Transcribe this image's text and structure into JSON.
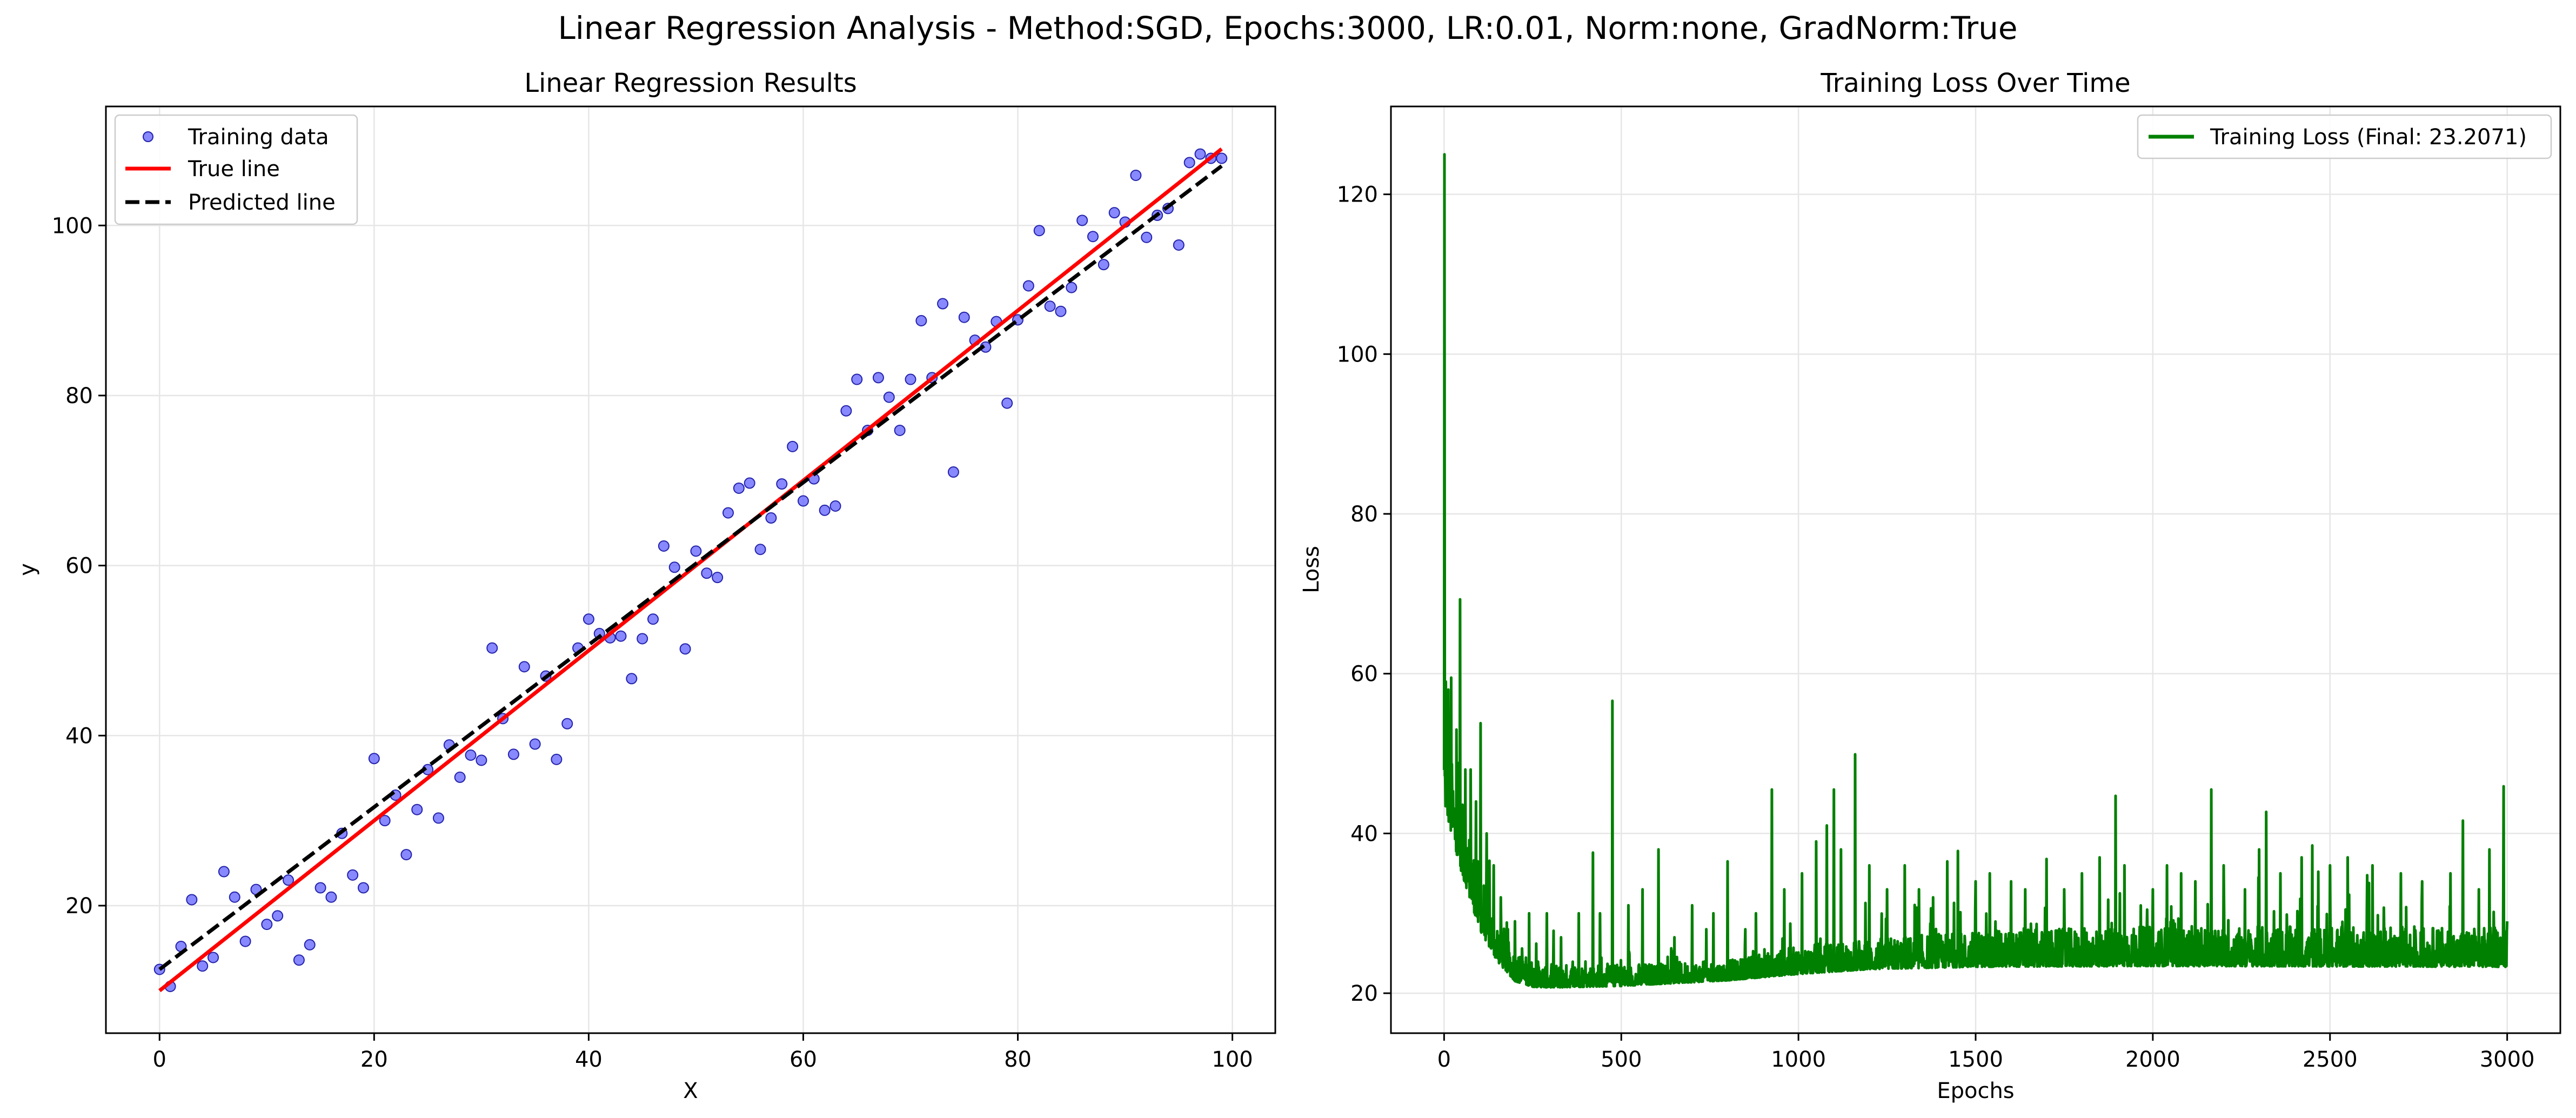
{
  "figure": {
    "suptitle": "Linear Regression Analysis - Method:SGD, Epochs:3000, LR:0.01, Norm:none, GradNorm:True"
  },
  "colors": {
    "scatter": "#5555ff",
    "scatter_edge": "#2222aa",
    "true_line": "#ff0000",
    "predicted_line": "#000000",
    "loss_line": "#008000",
    "grid": "#e6e6e6"
  },
  "chart_data": [
    {
      "type": "scatter",
      "title": "Linear Regression Results",
      "xlabel": "X",
      "ylabel": "y",
      "xlim": [
        -5,
        104
      ],
      "ylim": [
        5,
        114
      ],
      "xticks": [
        0,
        20,
        40,
        60,
        80,
        100
      ],
      "yticks": [
        20,
        40,
        60,
        80,
        100
      ],
      "grid": true,
      "legend_position": "upper-left",
      "legend": [
        "Training data",
        "True line",
        "Predicted line"
      ],
      "series": [
        {
          "name": "Training data",
          "kind": "scatter",
          "x": [
            0,
            1,
            2,
            3,
            4,
            5,
            6,
            7,
            8,
            9,
            10,
            11,
            12,
            13,
            14,
            15,
            16,
            17,
            18,
            19,
            20,
            21,
            22,
            23,
            24,
            25,
            26,
            27,
            28,
            29,
            30,
            31,
            32,
            33,
            34,
            35,
            36,
            37,
            38,
            39,
            40,
            41,
            42,
            43,
            44,
            45,
            46,
            47,
            48,
            49,
            50,
            51,
            52,
            53,
            54,
            55,
            56,
            57,
            58,
            59,
            60,
            61,
            62,
            63,
            64,
            65,
            66,
            67,
            68,
            69,
            70,
            71,
            72,
            73,
            74,
            75,
            76,
            77,
            78,
            79,
            80,
            81,
            82,
            83,
            84,
            85,
            86,
            87,
            88,
            89,
            90,
            91,
            92,
            93,
            94,
            95,
            96,
            97,
            98,
            99
          ],
          "y": [
            12.5,
            10.5,
            15.2,
            20.7,
            12.9,
            13.9,
            24.0,
            21.0,
            15.8,
            21.9,
            17.8,
            18.8,
            23.0,
            13.6,
            15.4,
            22.1,
            21.0,
            28.5,
            23.6,
            22.1,
            37.3,
            30.0,
            33.0,
            26.0,
            31.3,
            36.0,
            30.3,
            38.9,
            35.1,
            37.7,
            37.1,
            50.3,
            42.0,
            37.8,
            48.1,
            39.0,
            47.0,
            37.2,
            41.4,
            50.3,
            53.7,
            52.0,
            51.5,
            51.7,
            46.7,
            51.4,
            53.7,
            62.3,
            59.8,
            50.2,
            61.7,
            59.1,
            58.6,
            66.2,
            69.1,
            69.7,
            61.9,
            65.6,
            69.6,
            74.0,
            67.6,
            70.2,
            66.5,
            67.0,
            78.2,
            81.9,
            75.9,
            82.1,
            79.8,
            75.9,
            81.9,
            88.8,
            82.1,
            90.8,
            71.0,
            89.2,
            86.5,
            85.7,
            88.7,
            79.1,
            88.9,
            92.9,
            99.4,
            90.5,
            89.9,
            92.7,
            100.6,
            98.7,
            95.4,
            101.5,
            100.4,
            105.9,
            98.6,
            101.2,
            102.0,
            97.7,
            107.4,
            108.4,
            107.9,
            107.9
          ]
        },
        {
          "name": "True line",
          "kind": "line",
          "x": [
            0,
            99
          ],
          "y": [
            10.0,
            109.0
          ]
        },
        {
          "name": "Predicted line",
          "kind": "line",
          "style": "dashed",
          "x": [
            0,
            99
          ],
          "y": [
            12.5,
            107.0
          ]
        }
      ]
    },
    {
      "type": "line",
      "title": "Training Loss Over Time",
      "xlabel": "Epochs",
      "ylabel": "Loss",
      "xlim": [
        -150,
        3150
      ],
      "ylim": [
        15,
        131
      ],
      "xticks": [
        0,
        500,
        1000,
        1500,
        2000,
        2500,
        3000
      ],
      "yticks": [
        20,
        40,
        60,
        80,
        100,
        120
      ],
      "grid": true,
      "legend_position": "upper-right",
      "legend": [
        "Training Loss (Final: 23.2071)"
      ],
      "series": [
        {
          "name": "Training Loss (Final: 23.2071)",
          "epochs": 3000,
          "final": 23.2071,
          "baseline": [
            [
              0,
              44
            ],
            [
              20,
              40
            ],
            [
              50,
              35
            ],
            [
              100,
              28
            ],
            [
              150,
              24
            ],
            [
              200,
              21.5
            ],
            [
              250,
              20.8
            ],
            [
              300,
              20.7
            ],
            [
              500,
              20.9
            ],
            [
              800,
              21.6
            ],
            [
              1000,
              22.4
            ],
            [
              1200,
              23.0
            ],
            [
              1500,
              23.3
            ],
            [
              2000,
              23.4
            ],
            [
              3000,
              23.3
            ]
          ],
          "band": [
            [
              0,
              10
            ],
            [
              100,
              8
            ],
            [
              200,
              4
            ],
            [
              300,
              3
            ],
            [
              800,
              2.5
            ],
            [
              1000,
              3.5
            ],
            [
              1500,
              4.5
            ],
            [
              2000,
              5
            ],
            [
              3000,
              5
            ]
          ],
          "spikes": [
            [
              1,
              125
            ],
            [
              5,
              59
            ],
            [
              12,
              58
            ],
            [
              20,
              59.5
            ],
            [
              35,
              53
            ],
            [
              45,
              69.3
            ],
            [
              60,
              48
            ],
            [
              75,
              48
            ],
            [
              90,
              44
            ],
            [
              103,
              53.8
            ],
            [
              120,
              40
            ],
            [
              140,
              36
            ],
            [
              160,
              32
            ],
            [
              180,
              28
            ],
            [
              200,
              29
            ],
            [
              240,
              30
            ],
            [
              290,
              30
            ],
            [
              330,
              27
            ],
            [
              380,
              30
            ],
            [
              420,
              37.6
            ],
            [
              440,
              30
            ],
            [
              475,
              56.6
            ],
            [
              520,
              31
            ],
            [
              560,
              33
            ],
            [
              605,
              38
            ],
            [
              650,
              27
            ],
            [
              700,
              31
            ],
            [
              740,
              28
            ],
            [
              760,
              30
            ],
            [
              800,
              36.5
            ],
            [
              850,
              28
            ],
            [
              880,
              30
            ],
            [
              925,
              45.5
            ],
            [
              960,
              33
            ],
            [
              1010,
              35
            ],
            [
              1050,
              39
            ],
            [
              1080,
              41
            ],
            [
              1100,
              45.5
            ],
            [
              1120,
              38
            ],
            [
              1160,
              49.9
            ],
            [
              1200,
              36
            ],
            [
              1250,
              33
            ],
            [
              1300,
              36
            ],
            [
              1340,
              33
            ],
            [
              1380,
              32
            ],
            [
              1420,
              36.5
            ],
            [
              1450,
              37.8
            ],
            [
              1500,
              34
            ],
            [
              1540,
              35
            ],
            [
              1600,
              34
            ],
            [
              1640,
              33
            ],
            [
              1700,
              36.8
            ],
            [
              1750,
              33
            ],
            [
              1800,
              35
            ],
            [
              1850,
              37
            ],
            [
              1895,
              44.7
            ],
            [
              1920,
              36
            ],
            [
              2000,
              33
            ],
            [
              2040,
              36
            ],
            [
              2080,
              35
            ],
            [
              2120,
              34
            ],
            [
              2165,
              45.5
            ],
            [
              2200,
              36
            ],
            [
              2260,
              33
            ],
            [
              2300,
              38
            ],
            [
              2320,
              42.7
            ],
            [
              2360,
              35
            ],
            [
              2420,
              37
            ],
            [
              2450,
              38.5
            ],
            [
              2500,
              36
            ],
            [
              2550,
              37
            ],
            [
              2620,
              36
            ],
            [
              2700,
              35
            ],
            [
              2760,
              34
            ],
            [
              2840,
              35
            ],
            [
              2875,
              41.6
            ],
            [
              2920,
              33
            ],
            [
              2950,
              38
            ],
            [
              2990,
              45.9
            ],
            [
              3000,
              29
            ]
          ]
        }
      ]
    }
  ]
}
